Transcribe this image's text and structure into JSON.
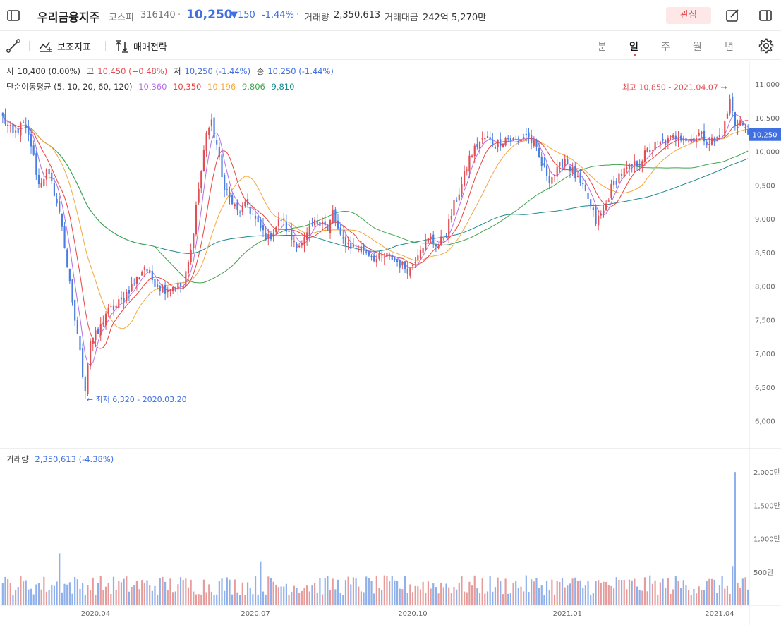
{
  "header": {
    "stock_name": "우리금융지주",
    "market": "코스피",
    "code": "316140",
    "price": "10,250",
    "change": "▼150",
    "change_pct": "-1.44%",
    "volume_label": "거래량",
    "volume": "2,350,613",
    "amount_label": "거래대금",
    "amount": "242억 5,270만",
    "favorite_label": "관심",
    "dot": "·"
  },
  "toolbar": {
    "indicator_label": "보조지표",
    "strategy_label": "매매전략",
    "periods": [
      "분",
      "일",
      "주",
      "월",
      "년"
    ],
    "active_period": "일"
  },
  "ohlc_legend": {
    "open_label": "시",
    "open": "10,400 (0.00%)",
    "high_label": "고",
    "high": "10,450 (+0.48%)",
    "low_label": "저",
    "low": "10,250 (-1.44%)",
    "close_label": "종",
    "close": "10,250 (-1.44%)"
  },
  "ma_legend": {
    "label": "단순이동평균 (5, 10, 20, 60, 120)",
    "values": [
      "10,360",
      "10,350",
      "10,196",
      "9,806",
      "9,810"
    ]
  },
  "volume_legend": {
    "label": "거래량",
    "value": "2,350,613 (-4.38%)"
  },
  "colors": {
    "up": "#e14f55",
    "down": "#4a7ee0",
    "text_blue": "#3f6fe0",
    "ma5": "#b46ee8",
    "ma10": "#e9433f",
    "ma20": "#f4a83a",
    "ma60": "#3fa34d",
    "ma120": "#1b8a8e",
    "vol_up": "#e79c9c",
    "vol_down": "#8fb0ea",
    "vol_flat": "#9aa3ad"
  },
  "icons": {
    "sidebar": "sidebar-toggle-icon",
    "edit": "edit-icon",
    "panel": "panel-icon",
    "draw": "line-draw-icon",
    "indicator": "indicator-icon",
    "strategy": "strategy-icon",
    "settings": "gear-icon"
  },
  "chart_data": {
    "type": "candlestick",
    "price_axis": {
      "ticks": [
        6000,
        6500,
        7000,
        7500,
        8000,
        8500,
        9000,
        9500,
        10000,
        10500,
        11000
      ],
      "tick_labels": [
        "6,000",
        "6,500",
        "7,000",
        "7,500",
        "8,000",
        "8,500",
        "9,000",
        "9,500",
        "10,000",
        "10,500",
        "11,000"
      ],
      "range": [
        5650,
        11200
      ]
    },
    "volume_axis": {
      "ticks": [
        5000000,
        10000000,
        15000000,
        20000000
      ],
      "tick_labels": [
        "500만",
        "1,000만",
        "1,500만",
        "2,000만"
      ],
      "range": [
        0,
        21500000
      ]
    },
    "x_labels": [
      {
        "label": "2020.04",
        "index": 36
      },
      {
        "label": "2020.07",
        "index": 98
      },
      {
        "label": "2020.10",
        "index": 159
      },
      {
        "label": "2021.01",
        "index": 219
      },
      {
        "label": "2021.04",
        "index": 278
      }
    ],
    "total_bars": 290,
    "current_price": {
      "value": 10250,
      "label": "10,250"
    },
    "annotations": [
      {
        "text": "최고 10,850 - 2021.04.07",
        "value": 10850,
        "index": 282
      },
      {
        "text": "최저 6,320 - 2020.03.20",
        "value": 6320,
        "index": 32
      }
    ],
    "close_keyframes": [
      [
        0,
        10500
      ],
      [
        4,
        10250
      ],
      [
        8,
        10400
      ],
      [
        11,
        10100
      ],
      [
        14,
        9500
      ],
      [
        17,
        9700
      ],
      [
        20,
        9400
      ],
      [
        23,
        8900
      ],
      [
        25,
        8300
      ],
      [
        27,
        7700
      ],
      [
        29,
        7300
      ],
      [
        31,
        6700
      ],
      [
        32,
        6500
      ],
      [
        34,
        7200
      ],
      [
        37,
        7300
      ],
      [
        40,
        7600
      ],
      [
        44,
        7700
      ],
      [
        48,
        7900
      ],
      [
        52,
        8100
      ],
      [
        55,
        8300
      ],
      [
        58,
        8100
      ],
      [
        62,
        7950
      ],
      [
        66,
        8000
      ],
      [
        70,
        8000
      ],
      [
        73,
        8500
      ],
      [
        75,
        9200
      ],
      [
        77,
        9700
      ],
      [
        79,
        10300
      ],
      [
        81,
        10400
      ],
      [
        83,
        10100
      ],
      [
        85,
        9600
      ],
      [
        88,
        9300
      ],
      [
        91,
        9100
      ],
      [
        95,
        9200
      ],
      [
        99,
        8900
      ],
      [
        103,
        8700
      ],
      [
        108,
        9000
      ],
      [
        112,
        8700
      ],
      [
        116,
        8600
      ],
      [
        120,
        8900
      ],
      [
        124,
        9000
      ],
      [
        126,
        8800
      ],
      [
        128,
        9100
      ],
      [
        131,
        8700
      ],
      [
        135,
        8600
      ],
      [
        140,
        8550
      ],
      [
        145,
        8400
      ],
      [
        150,
        8450
      ],
      [
        155,
        8300
      ],
      [
        158,
        8250
      ],
      [
        162,
        8600
      ],
      [
        166,
        8700
      ],
      [
        169,
        8600
      ],
      [
        172,
        8800
      ],
      [
        175,
        9200
      ],
      [
        178,
        9500
      ],
      [
        181,
        9900
      ],
      [
        184,
        10100
      ],
      [
        187,
        10200
      ],
      [
        191,
        10100
      ],
      [
        195,
        10200
      ],
      [
        199,
        10150
      ],
      [
        203,
        10250
      ],
      [
        206,
        10100
      ],
      [
        209,
        9800
      ],
      [
        212,
        9600
      ],
      [
        215,
        9700
      ],
      [
        218,
        9900
      ],
      [
        221,
        9700
      ],
      [
        224,
        9500
      ],
      [
        227,
        9300
      ],
      [
        230,
        8950
      ],
      [
        233,
        9100
      ],
      [
        236,
        9450
      ],
      [
        239,
        9650
      ],
      [
        243,
        9750
      ],
      [
        247,
        9850
      ],
      [
        250,
        10000
      ],
      [
        254,
        10100
      ],
      [
        258,
        10150
      ],
      [
        262,
        10250
      ],
      [
        266,
        10150
      ],
      [
        270,
        10250
      ],
      [
        274,
        10150
      ],
      [
        278,
        10200
      ],
      [
        280,
        10400
      ],
      [
        282,
        10750
      ],
      [
        284,
        10400
      ],
      [
        286,
        10450
      ],
      [
        289,
        10250
      ]
    ]
  }
}
